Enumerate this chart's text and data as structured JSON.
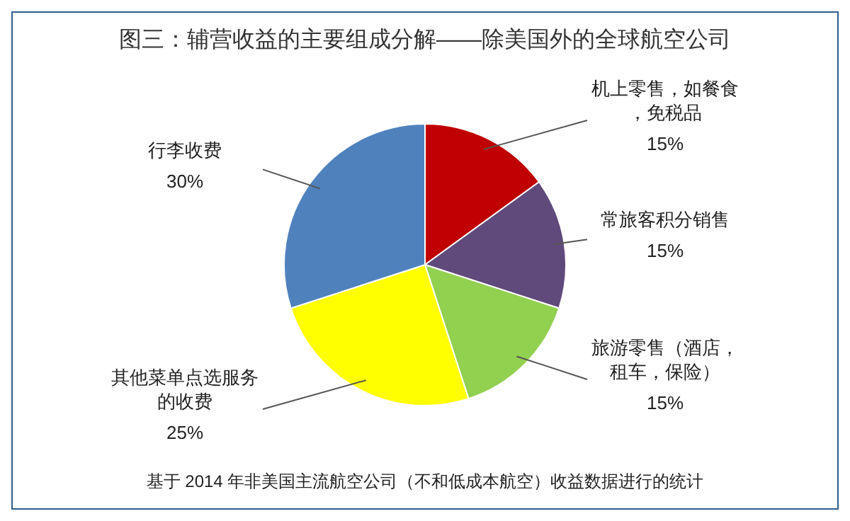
{
  "chart_data": {
    "type": "pie",
    "title": "图三：辅营收益的主要组成分解——除美国外的全球航空公司",
    "categories": [
      "机上零售，如餐食，免税品",
      "常旅客积分销售",
      "旅游零售（酒店，租车，保险）",
      "其他菜单点选服务的收费",
      "行李收费"
    ],
    "values": [
      15,
      15,
      15,
      25,
      30
    ],
    "value_labels": [
      "15%",
      "15%",
      "15%",
      "25%",
      "30%"
    ],
    "colors": [
      "#c00000",
      "#604a7b",
      "#92d050",
      "#ffff00",
      "#4f81bd"
    ],
    "data_labels": true,
    "legend": false,
    "annotations": [
      "基于 2014 年非美国主流航空公司（不和低成本航空）收益数据进行的统计"
    ]
  }
}
